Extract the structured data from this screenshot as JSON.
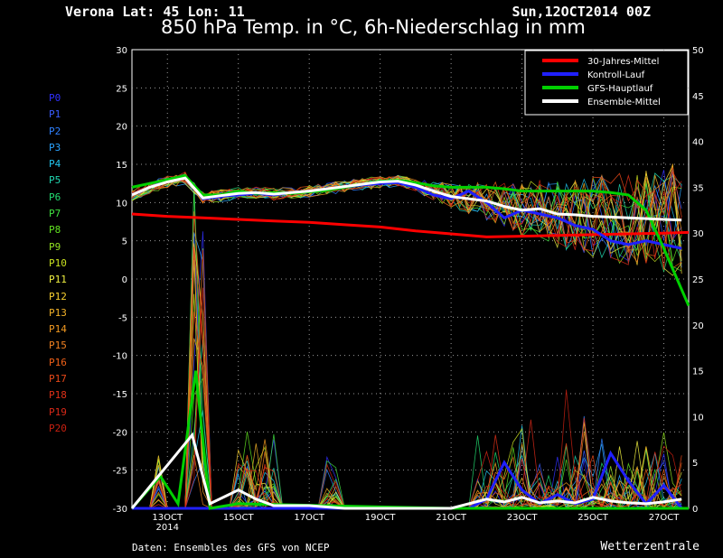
{
  "header": {
    "location": "Verona   Lat: 45 Lon: 11",
    "run": "Sun,12OCT2014 00Z",
    "title": "850 hPa Temp. in °C, 6h-Niederschlag in mm"
  },
  "members": [
    "P0",
    "P1",
    "P2",
    "P3",
    "P4",
    "P5",
    "P6",
    "P7",
    "P8",
    "P9",
    "P10",
    "P11",
    "P12",
    "P13",
    "P14",
    "P15",
    "P16",
    "P17",
    "P18",
    "P19",
    "P20"
  ],
  "member_colors": [
    "#3030ff",
    "#3a5cff",
    "#2f80ff",
    "#2aa4ff",
    "#22c4ee",
    "#20d6b0",
    "#22dc70",
    "#40e040",
    "#60e020",
    "#90e020",
    "#c8e020",
    "#f0f040",
    "#f8d030",
    "#f0b028",
    "#f09820",
    "#f08020",
    "#f06018",
    "#e84818",
    "#e03018",
    "#d82818",
    "#c82010"
  ],
  "footer": {
    "source": "Daten: Ensembles des GFS von NCEP",
    "brand": "Wetterzentrale"
  },
  "legend": [
    "30-Jahres-Mittel",
    "Kontroll-Lauf",
    "GFS-Hauptlauf",
    "Ensemble-Mittel"
  ],
  "colors": {
    "clim": "#ff0000",
    "control": "#2020ff",
    "gfs": "#00d000",
    "mean": "#ffffff",
    "grid": "#9a9a9a"
  },
  "chart_data": {
    "type": "line",
    "title": "850 hPa Temp. in °C, 6h-Niederschlag in mm",
    "x_ticks": [
      "13OCT",
      "15OCT",
      "17OCT",
      "19OCT",
      "21OCT",
      "23OCT",
      "25OCT",
      "27OCT"
    ],
    "x_sub": "2014",
    "x_range_days": [
      12,
      27.7
    ],
    "y_left_range": [
      -30,
      30
    ],
    "y_left_ticks": [
      -30,
      -25,
      -20,
      -15,
      -10,
      -5,
      0,
      5,
      10,
      15,
      20,
      25,
      30
    ],
    "y_right_range": [
      0,
      50
    ],
    "y_right_ticks": [
      0,
      5,
      10,
      15,
      20,
      25,
      30,
      35,
      40,
      45,
      50
    ],
    "grid": true,
    "legend_position": "top-right",
    "series": [
      {
        "name": "30-Jahres-Mittel",
        "points": [
          [
            12,
            8.5
          ],
          [
            13,
            8.2
          ],
          [
            14,
            8
          ],
          [
            15,
            7.8
          ],
          [
            16,
            7.6
          ],
          [
            17,
            7.4
          ],
          [
            18,
            7.1
          ],
          [
            19,
            6.8
          ],
          [
            20,
            6.3
          ],
          [
            21,
            5.9
          ],
          [
            22,
            5.5
          ],
          [
            23,
            5.6
          ],
          [
            24,
            5.7
          ],
          [
            25,
            5.8
          ],
          [
            26,
            5.9
          ],
          [
            27,
            6.0
          ],
          [
            27.7,
            6.1
          ]
        ]
      },
      {
        "name": "Kontroll-Lauf",
        "points": [
          [
            12,
            11
          ],
          [
            12.5,
            12
          ],
          [
            13,
            12.8
          ],
          [
            13.5,
            13.5
          ],
          [
            14,
            10.5
          ],
          [
            14.5,
            10.8
          ],
          [
            15,
            11
          ],
          [
            15.5,
            11.2
          ],
          [
            16,
            11
          ],
          [
            16.5,
            11.3
          ],
          [
            17,
            11.5
          ],
          [
            17.5,
            11.8
          ],
          [
            18,
            12
          ],
          [
            18.5,
            12.3
          ],
          [
            19,
            12.5
          ],
          [
            19.5,
            12.6
          ],
          [
            20,
            12
          ],
          [
            20.5,
            11
          ],
          [
            21,
            10.5
          ],
          [
            21.5,
            11.5
          ],
          [
            22,
            10
          ],
          [
            22.5,
            8
          ],
          [
            23,
            9
          ],
          [
            23.5,
            8.5
          ],
          [
            24,
            8
          ],
          [
            24.5,
            7
          ],
          [
            25,
            6.5
          ],
          [
            25.5,
            5
          ],
          [
            26,
            4.5
          ],
          [
            26.5,
            5
          ],
          [
            27,
            4.5
          ],
          [
            27.5,
            4
          ]
        ],
        "precip": [
          [
            12,
            0
          ],
          [
            21.5,
            0
          ],
          [
            22,
            1
          ],
          [
            22.5,
            5
          ],
          [
            23,
            2
          ],
          [
            23.5,
            0.5
          ],
          [
            24,
            1.5
          ],
          [
            24.5,
            0.5
          ],
          [
            25,
            1
          ],
          [
            25.5,
            6
          ],
          [
            26,
            3
          ],
          [
            26.5,
            0.5
          ],
          [
            27,
            2.5
          ],
          [
            27.5,
            0
          ]
        ]
      },
      {
        "name": "GFS-Hauptlauf",
        "points": [
          [
            12,
            12
          ],
          [
            12.5,
            12.5
          ],
          [
            13,
            13
          ],
          [
            13.5,
            13.5
          ],
          [
            14,
            11
          ],
          [
            14.5,
            11
          ],
          [
            15,
            11.5
          ],
          [
            15.5,
            11.2
          ],
          [
            16,
            11.3
          ],
          [
            16.5,
            11.2
          ],
          [
            17,
            11.4
          ],
          [
            17.5,
            11.6
          ],
          [
            18,
            12
          ],
          [
            18.5,
            12.4
          ],
          [
            19,
            12.8
          ],
          [
            19.5,
            12.9
          ],
          [
            20,
            12.6
          ],
          [
            20.5,
            12.2
          ],
          [
            21,
            12
          ],
          [
            21.5,
            12
          ],
          [
            22,
            12
          ],
          [
            22.5,
            11.8
          ],
          [
            23,
            11.5
          ],
          [
            23.5,
            11.5
          ],
          [
            24,
            11.5
          ],
          [
            24.5,
            11.5
          ],
          [
            25,
            11.5
          ],
          [
            25.5,
            11.3
          ],
          [
            26,
            11
          ],
          [
            26.5,
            9
          ],
          [
            27,
            4
          ],
          [
            27.7,
            -3.5
          ]
        ],
        "precip": [
          [
            12,
            0
          ],
          [
            12.8,
            3.5
          ],
          [
            13.3,
            0.5
          ],
          [
            13.8,
            15
          ],
          [
            14.2,
            0
          ],
          [
            15,
            0.5
          ],
          [
            21,
            0
          ],
          [
            27.7,
            0
          ]
        ]
      },
      {
        "name": "Ensemble-Mittel",
        "points": [
          [
            12,
            11
          ],
          [
            12.5,
            12
          ],
          [
            13,
            12.7
          ],
          [
            13.5,
            13.2
          ],
          [
            14,
            10.6
          ],
          [
            14.5,
            10.9
          ],
          [
            15,
            11.2
          ],
          [
            15.5,
            11.3
          ],
          [
            16,
            11.1
          ],
          [
            16.5,
            11.3
          ],
          [
            17,
            11.5
          ],
          [
            17.5,
            11.8
          ],
          [
            18,
            12.1
          ],
          [
            18.5,
            12.4
          ],
          [
            19,
            12.7
          ],
          [
            19.5,
            12.8
          ],
          [
            20,
            12.3
          ],
          [
            20.5,
            11.5
          ],
          [
            21,
            10.8
          ],
          [
            21.5,
            10.5
          ],
          [
            22,
            10.2
          ],
          [
            22.5,
            9.5
          ],
          [
            23,
            9
          ],
          [
            23.5,
            9.2
          ],
          [
            24,
            8.5
          ],
          [
            24.5,
            8.4
          ],
          [
            25,
            8.2
          ],
          [
            25.5,
            8.1
          ],
          [
            26,
            8
          ],
          [
            26.5,
            7.9
          ],
          [
            27,
            7.8
          ],
          [
            27.5,
            7.7
          ]
        ],
        "precip": [
          [
            12,
            0
          ],
          [
            13.7,
            8
          ],
          [
            14.2,
            0.5
          ],
          [
            15,
            2
          ],
          [
            15.5,
            1
          ],
          [
            16,
            0.3
          ],
          [
            17,
            0.3
          ],
          [
            18,
            0
          ],
          [
            21,
            0
          ],
          [
            22,
            1
          ],
          [
            22.5,
            0.7
          ],
          [
            23,
            1.2
          ],
          [
            23.5,
            0.6
          ],
          [
            24,
            0.8
          ],
          [
            24.5,
            0.6
          ],
          [
            25,
            1.2
          ],
          [
            25.5,
            0.8
          ],
          [
            26,
            0.6
          ],
          [
            26.5,
            0.5
          ],
          [
            27,
            0.7
          ],
          [
            27.5,
            1
          ]
        ]
      }
    ],
    "member_precip_spike": {
      "x": 13.8,
      "max": 36
    },
    "member_precip_peaks": [
      [
        21.8,
        16
      ],
      [
        22.7,
        10
      ],
      [
        24.1,
        8
      ]
    ]
  }
}
